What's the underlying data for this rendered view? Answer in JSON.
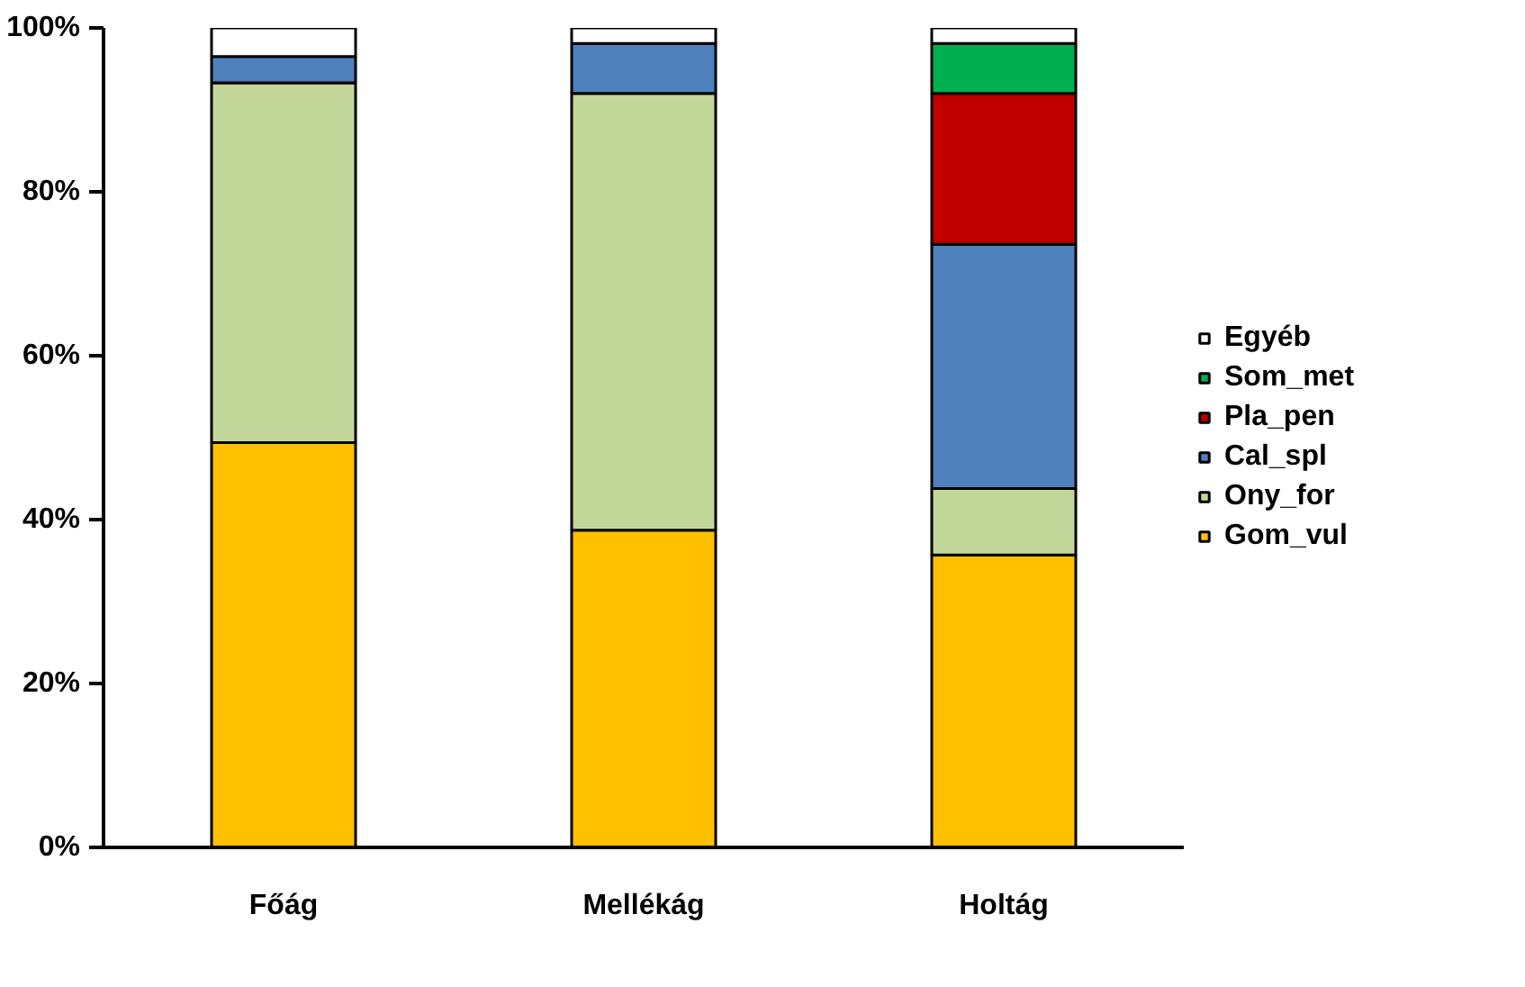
{
  "chart_data": {
    "type": "bar",
    "stacked": true,
    "categories": [
      "Főág",
      "Mellékág",
      "Holtág"
    ],
    "series": [
      {
        "name": "Gom_vul",
        "color": "#ffc000",
        "values": [
          49.4,
          38.7,
          35.7
        ]
      },
      {
        "name": "Ony_for",
        "color": "#c4d79b",
        "values": [
          43.9,
          53.3,
          8.1
        ]
      },
      {
        "name": "Cal_spl",
        "color": "#4f81bd",
        "values": [
          3.2,
          6.1,
          29.8
        ]
      },
      {
        "name": "Pla_pen",
        "color": "#c00000",
        "values": [
          null,
          null,
          18.4
        ]
      },
      {
        "name": "Som_met",
        "color": "#00b050",
        "values": [
          null,
          null,
          6.1
        ]
      },
      {
        "name": "Egyéb",
        "color": "#ffffff",
        "values": [
          3.5,
          1.9,
          1.9
        ]
      }
    ],
    "ylim": [
      0,
      100
    ],
    "yticks": [
      {
        "value": 0,
        "label": "0%"
      },
      {
        "value": 20,
        "label": "20%"
      },
      {
        "value": 40,
        "label": "40%"
      },
      {
        "value": 60,
        "label": "60%"
      },
      {
        "value": 80,
        "label": "80%"
      },
      {
        "value": 100,
        "label": "100%"
      }
    ],
    "grid": false,
    "legend": "right"
  }
}
